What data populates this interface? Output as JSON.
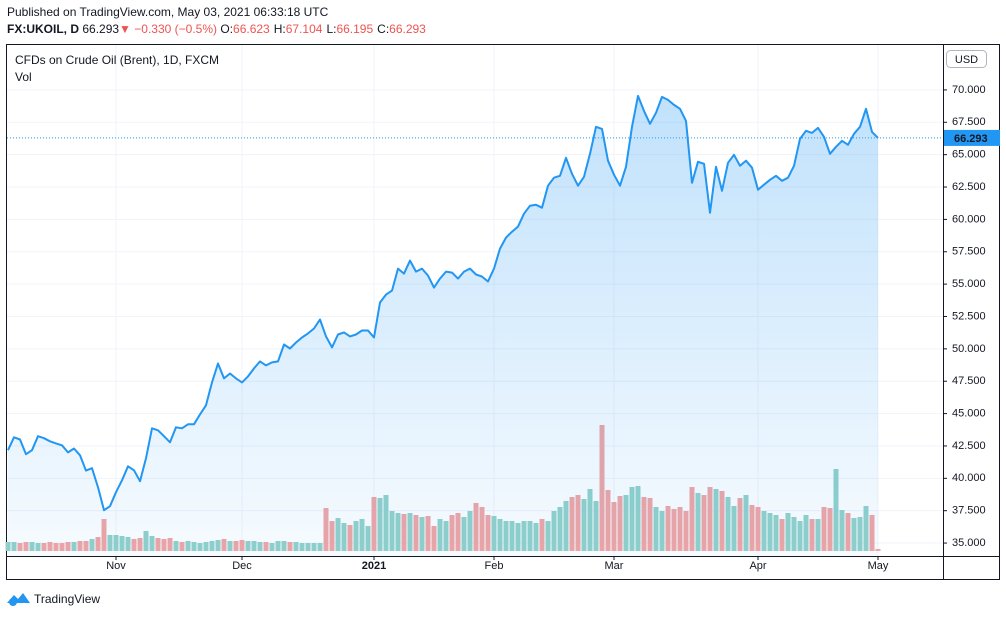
{
  "header": {
    "published": "Published on TradingView.com, May 03, 2021 06:33:18 UTC",
    "symbol": "FX:UKOIL, D",
    "last": "66.293",
    "direction": "▼",
    "change": "−0.330 (−0.5%)",
    "ohlc": [
      {
        "label": "O:",
        "value": "66.623"
      },
      {
        "label": "H:",
        "value": "67.104"
      },
      {
        "label": "L:",
        "value": "66.195"
      },
      {
        "label": "C:",
        "value": "66.293"
      }
    ]
  },
  "chart_data": {
    "type": "area",
    "title": "CFDs on Crude Oil (Brent), 1D, FXCM",
    "currency": "USD",
    "categories": [
      null,
      null,
      null,
      null,
      null,
      null,
      null,
      null,
      null,
      null,
      null,
      null,
      null,
      null,
      null,
      null,
      null,
      null,
      "Nov",
      null,
      null,
      null,
      null,
      null,
      null,
      null,
      null,
      null,
      null,
      null,
      null,
      null,
      null,
      null,
      null,
      null,
      null,
      null,
      null,
      "Dec",
      null,
      null,
      null,
      null,
      null,
      null,
      null,
      null,
      null,
      null,
      null,
      null,
      null,
      null,
      null,
      null,
      null,
      null,
      null,
      null,
      null,
      "2021",
      null,
      null,
      null,
      null,
      null,
      null,
      null,
      null,
      null,
      null,
      null,
      null,
      null,
      null,
      null,
      null,
      null,
      null,
      null,
      "Feb",
      null,
      null,
      null,
      null,
      null,
      null,
      null,
      null,
      null,
      null,
      null,
      null,
      null,
      null,
      null,
      null,
      null,
      null,
      null,
      "Mar",
      null,
      null,
      null,
      null,
      null,
      null,
      null,
      null,
      null,
      null,
      null,
      null,
      null,
      null,
      null,
      null,
      null,
      null,
      null,
      null,
      null,
      null,
      null,
      "Apr",
      null,
      null,
      null,
      null,
      null,
      null,
      null,
      null,
      null,
      null,
      null,
      null,
      null,
      null,
      null,
      null,
      null,
      null,
      null,
      "May"
    ],
    "series": [
      {
        "name": "CFDs on Crude Oil (Brent)",
        "color": "#2196f3",
        "values": [
          42.17,
          43.17,
          43.0,
          41.86,
          42.17,
          43.25,
          43.1,
          42.86,
          42.7,
          42.55,
          42.0,
          42.3,
          41.78,
          40.6,
          40.78,
          39.31,
          37.54,
          37.85,
          38.93,
          39.85,
          40.93,
          40.62,
          39.78,
          41.55,
          43.86,
          43.71,
          43.25,
          42.78,
          43.94,
          43.86,
          44.17,
          44.17,
          44.94,
          45.64,
          47.41,
          48.87,
          47.72,
          48.1,
          47.72,
          47.41,
          47.87,
          48.49,
          49.03,
          48.72,
          48.95,
          49.03,
          50.34,
          50.03,
          50.49,
          50.88,
          51.19,
          51.57,
          52.27,
          50.96,
          50.11,
          51.11,
          51.27,
          50.96,
          51.11,
          51.42,
          51.42,
          50.88,
          53.58,
          54.19,
          54.5,
          56.2,
          55.81,
          56.82,
          55.97,
          56.2,
          55.66,
          54.73,
          55.43,
          55.97,
          55.89,
          55.43,
          55.97,
          56.2,
          55.74,
          55.58,
          55.2,
          56.2,
          57.74,
          58.59,
          59.05,
          59.44,
          60.44,
          61.06,
          61.13,
          60.9,
          62.6,
          63.22,
          63.37,
          64.76,
          63.52,
          62.6,
          63.29,
          65.07,
          67.15,
          66.99,
          64.53,
          63.45,
          62.6,
          64.06,
          67.15,
          69.54,
          68.38,
          67.38,
          68.23,
          69.46,
          69.23,
          68.84,
          68.54,
          67.61,
          62.83,
          64.45,
          64.29,
          60.52,
          64.06,
          62.21,
          64.37,
          64.99,
          64.14,
          64.53,
          63.99,
          62.29,
          62.68,
          63.06,
          63.37,
          62.98,
          63.22,
          64.14,
          66.22,
          66.84,
          66.68,
          67.07,
          66.38,
          65.07,
          65.61,
          66.07,
          65.76,
          66.61,
          67.15,
          68.54,
          66.76,
          66.293
        ]
      },
      {
        "name": "Vol",
        "type": "bar",
        "axis": "y2",
        "up_color": "#92d1ca",
        "down_color": "#f1a5a4",
        "values": [
          9,
          9,
          8,
          9,
          9,
          8,
          8,
          9,
          8,
          8,
          9,
          9,
          10,
          10,
          12,
          14,
          32,
          16,
          16,
          15,
          14,
          12,
          13,
          20,
          15,
          13,
          12,
          13,
          10,
          9,
          10,
          9,
          8,
          9,
          10,
          11,
          12,
          10,
          10,
          11,
          10,
          10,
          9,
          9,
          8,
          10,
          10,
          9,
          9,
          8,
          8,
          8,
          8,
          43,
          30,
          33,
          28,
          26,
          30,
          32,
          25,
          54,
          53,
          56,
          40,
          38,
          37,
          38,
          36,
          34,
          35,
          25,
          32,
          30,
          36,
          38,
          34,
          40,
          48,
          44,
          36,
          35,
          32,
          30,
          30,
          28,
          30,
          30,
          28,
          32,
          30,
          40,
          44,
          50,
          54,
          56,
          52,
          62,
          50,
          126,
          61,
          49,
          55,
          56,
          64,
          65,
          54,
          53,
          44,
          40,
          45,
          42,
          44,
          40,
          64,
          58,
          56,
          64,
          62,
          60,
          54,
          45,
          53,
          56,
          46,
          44,
          40,
          38,
          36,
          32,
          38,
          34,
          30,
          36,
          32,
          32,
          44,
          43,
          82,
          41,
          38,
          33,
          34,
          45,
          36,
          2
        ]
      }
    ],
    "ylim": [
      34.0,
      73.47
    ],
    "yticks": [
      {
        "value": 35,
        "label": "35.000"
      },
      {
        "value": 37.5,
        "label": "37.500"
      },
      {
        "value": 40,
        "label": "40.000"
      },
      {
        "value": 42.5,
        "label": "42.500"
      },
      {
        "value": 45,
        "label": "45.000"
      },
      {
        "value": 47.5,
        "label": "47.500"
      },
      {
        "value": 50,
        "label": "50.000"
      },
      {
        "value": 52.5,
        "label": "52.500"
      },
      {
        "value": 55,
        "label": "55.000"
      },
      {
        "value": 57.5,
        "label": "57.500"
      },
      {
        "value": 60,
        "label": "60.000"
      },
      {
        "value": 62.5,
        "label": "62.500"
      },
      {
        "value": 65,
        "label": "65.000"
      },
      {
        "value": 67.5,
        "label": "67.500"
      },
      {
        "value": 70,
        "label": "70.000"
      }
    ],
    "y2lim": [
      0,
      130
    ],
    "grid": true
  },
  "footer": {
    "brand": "TradingView"
  }
}
